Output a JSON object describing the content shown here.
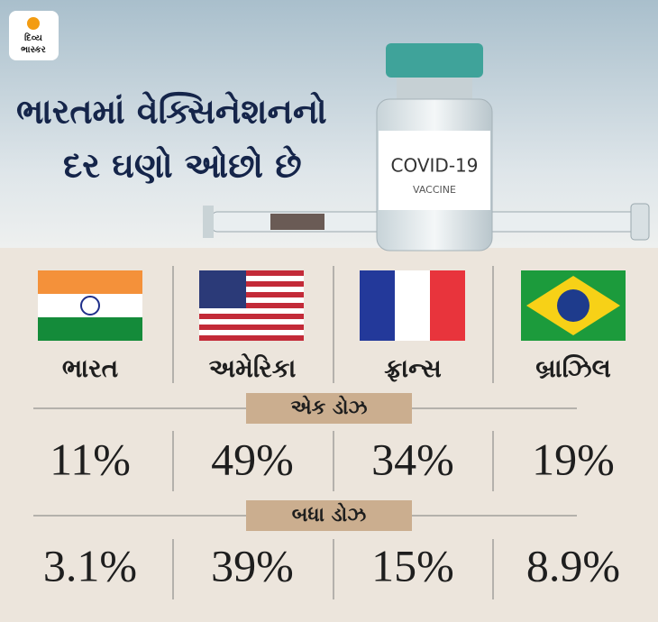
{
  "logo": {
    "line1": "દિવ્ય",
    "line2": "ભાસ્કર"
  },
  "title": {
    "lines": [
      "ભારતમાં વેક્સિનેશનનો",
      "દર ઘણો ઓછો છે"
    ]
  },
  "vial": {
    "label": "COVID-19",
    "sublabel": "VACCINE"
  },
  "countries": [
    "ભારત",
    "અમેરિકા",
    "ફ્રાન્સ",
    "બ્રાઝિલ"
  ],
  "sections": [
    {
      "label": "એક ડોઝ",
      "values": [
        "11%",
        "49%",
        "34%",
        "19%"
      ]
    },
    {
      "label": "બધા ડોઝ",
      "values": [
        "3.1%",
        "39%",
        "15%",
        "8.9%"
      ]
    }
  ]
}
